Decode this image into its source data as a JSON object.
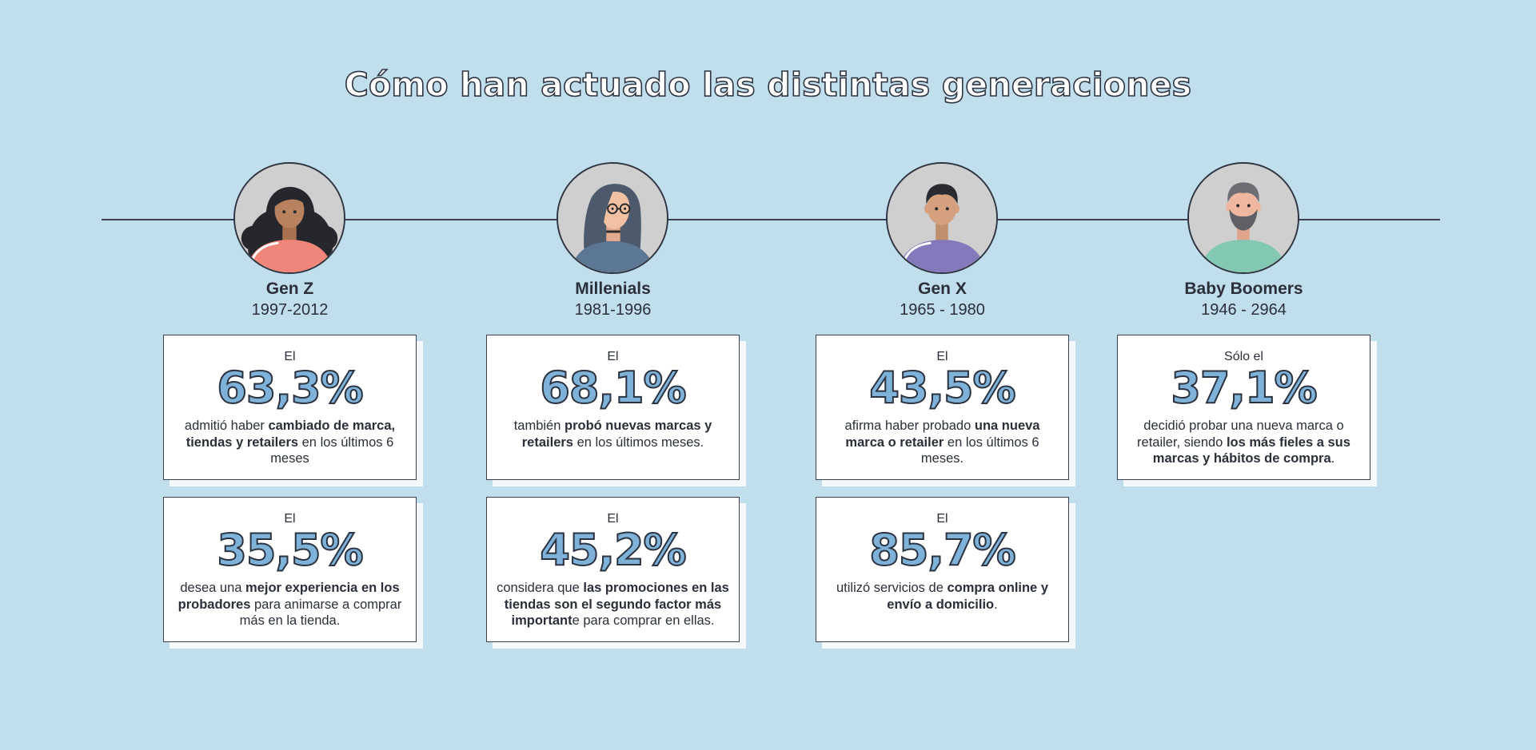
{
  "title": "Cómo han actuado las distintas generaciones",
  "generations": [
    {
      "name": "Gen Z",
      "years": "1997-2012",
      "avatar": {
        "icon": "woman-curly-hair-avatar-icon",
        "skin": "#b8825f",
        "hair": "#26272d",
        "shirt": "#f0857a"
      },
      "cards": [
        {
          "prefix": "El",
          "percent": "63,3%",
          "desc": [
            {
              "t": "admitió haber ",
              "b": false
            },
            {
              "t": "cambiado de marca, tiendas y retailers",
              "b": true
            },
            {
              "t": " en los últimos 6 meses",
              "b": false
            }
          ]
        },
        {
          "prefix": "El",
          "percent": "35,5%",
          "desc": [
            {
              "t": "desea una ",
              "b": false
            },
            {
              "t": "mejor experiencia en los probadores",
              "b": true
            },
            {
              "t": " para animarse a comprar más en la tienda.",
              "b": false
            }
          ]
        }
      ]
    },
    {
      "name": "Millenials",
      "years": "1981-1996",
      "avatar": {
        "icon": "woman-long-hair-glasses-avatar-icon",
        "skin": "#f2c0a3",
        "hair": "#4c5a6c",
        "shirt": "#5b7794"
      },
      "cards": [
        {
          "prefix": "El",
          "percent": "68,1%",
          "desc": [
            {
              "t": "también ",
              "b": false
            },
            {
              "t": "probó nuevas marcas y retailers",
              "b": true
            },
            {
              "t": " en los últimos meses.",
              "b": false
            }
          ]
        },
        {
          "prefix": "El",
          "percent": "45,2%",
          "desc": [
            {
              "t": "considera que ",
              "b": false
            },
            {
              "t": "las promociones en las tiendas son el segundo factor más important",
              "b": true
            },
            {
              "t": "e para comprar en ellas.",
              "b": false
            }
          ]
        }
      ]
    },
    {
      "name": "Gen X",
      "years": "1965 - 1980",
      "avatar": {
        "icon": "man-short-hair-avatar-icon",
        "skin": "#d4a07d",
        "hair": "#2a2b30",
        "shirt": "#8479ba"
      },
      "cards": [
        {
          "prefix": "El",
          "percent": "43,5%",
          "desc": [
            {
              "t": "afirma haber probado ",
              "b": false
            },
            {
              "t": "una nueva marca o retailer",
              "b": true
            },
            {
              "t": " en los últimos 6 meses.",
              "b": false
            }
          ]
        },
        {
          "prefix": "El",
          "percent": "85,7%",
          "desc": [
            {
              "t": "utilizó servicios de ",
              "b": false
            },
            {
              "t": "compra online y envío a domicilio",
              "b": true
            },
            {
              "t": ".",
              "b": false
            }
          ]
        }
      ]
    },
    {
      "name": "Baby Boomers",
      "years": "1946 - 2964",
      "avatar": {
        "icon": "man-beard-gray-hair-avatar-icon",
        "skin": "#f0b7a0",
        "hair": "#6d6e73",
        "shirt": "#83c8b3"
      },
      "cards": [
        {
          "prefix": "Sólo el",
          "percent": "37,1%",
          "desc": [
            {
              "t": "decidió probar una nueva marca o retailer, siendo ",
              "b": false
            },
            {
              "t": "los más fieles a sus marcas y hábitos de compra",
              "b": true
            },
            {
              "t": ".",
              "b": false
            }
          ]
        }
      ]
    }
  ],
  "colors": {
    "background": "#c1deed",
    "percent_fill": "#7fb2d9",
    "text": "#2a2f3a"
  }
}
